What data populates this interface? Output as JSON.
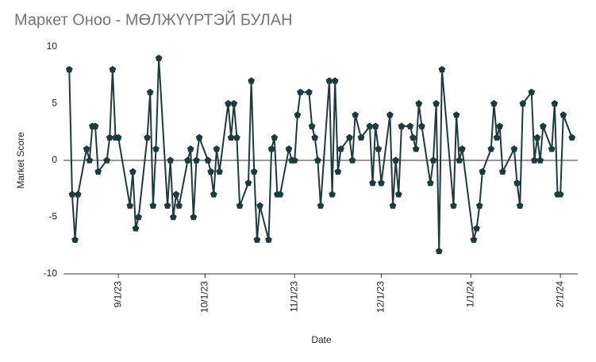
{
  "chart_data": {
    "type": "line",
    "title": "Маркет Оноо - МӨЛЖҮҮРТЭЙ БУЛАН",
    "xlabel": "Date",
    "ylabel": "Market Score",
    "x": [
      "2023-08-15",
      "2023-08-16",
      "2023-08-17",
      "2023-08-18",
      "2023-08-21",
      "2023-08-22",
      "2023-08-23",
      "2023-08-24",
      "2023-08-25",
      "2023-08-28",
      "2023-08-29",
      "2023-08-30",
      "2023-08-31",
      "2023-09-01",
      "2023-09-05",
      "2023-09-06",
      "2023-09-07",
      "2023-09-08",
      "2023-09-11",
      "2023-09-12",
      "2023-09-13",
      "2023-09-14",
      "2023-09-15",
      "2023-09-18",
      "2023-09-19",
      "2023-09-20",
      "2023-09-21",
      "2023-09-22",
      "2023-09-25",
      "2023-09-26",
      "2023-09-27",
      "2023-09-28",
      "2023-09-29",
      "2023-10-02",
      "2023-10-03",
      "2023-10-04",
      "2023-10-05",
      "2023-10-06",
      "2023-10-09",
      "2023-10-10",
      "2023-10-11",
      "2023-10-12",
      "2023-10-13",
      "2023-10-16",
      "2023-10-17",
      "2023-10-18",
      "2023-10-19",
      "2023-10-20",
      "2023-10-23",
      "2023-10-24",
      "2023-10-25",
      "2023-10-26",
      "2023-10-27",
      "2023-10-30",
      "2023-10-31",
      "2023-11-01",
      "2023-11-02",
      "2023-11-03",
      "2023-11-06",
      "2023-11-07",
      "2023-11-08",
      "2023-11-09",
      "2023-11-10",
      "2023-11-13",
      "2023-11-14",
      "2023-11-15",
      "2023-11-16",
      "2023-11-17",
      "2023-11-20",
      "2023-11-21",
      "2023-11-22",
      "2023-11-24",
      "2023-11-27",
      "2023-11-28",
      "2023-11-29",
      "2023-11-30",
      "2023-12-01",
      "2023-12-04",
      "2023-12-05",
      "2023-12-06",
      "2023-12-07",
      "2023-12-08",
      "2023-12-11",
      "2023-12-12",
      "2023-12-13",
      "2023-12-14",
      "2023-12-15",
      "2023-12-18",
      "2023-12-19",
      "2023-12-20",
      "2023-12-21",
      "2023-12-22",
      "2023-12-26",
      "2023-12-27",
      "2023-12-28",
      "2023-12-29",
      "2024-01-02",
      "2024-01-03",
      "2024-01-04",
      "2024-01-05",
      "2024-01-08",
      "2024-01-09",
      "2024-01-10",
      "2024-01-11",
      "2024-01-12",
      "2024-01-16",
      "2024-01-17",
      "2024-01-18",
      "2024-01-19",
      "2024-01-22",
      "2024-01-23",
      "2024-01-24",
      "2024-01-25",
      "2024-01-26",
      "2024-01-29",
      "2024-01-30",
      "2024-01-31",
      "2024-02-01",
      "2024-02-02",
      "2024-02-05"
    ],
    "series": [
      {
        "name": "Market Score",
        "color": "#1e3a3c",
        "values": [
          8,
          -3,
          -7,
          -3,
          1,
          0,
          3,
          3,
          -1,
          0,
          2,
          8,
          2,
          2,
          -4,
          -1,
          -6,
          -5,
          2,
          6,
          -4,
          1,
          9,
          -4,
          0,
          -5,
          -3,
          -4,
          0,
          1,
          -5,
          0,
          2,
          0,
          -1,
          -3,
          1,
          -1,
          5,
          2,
          5,
          2,
          -4,
          -2,
          7,
          -1,
          -7,
          -4,
          -7,
          1,
          2,
          -3,
          -3,
          1,
          0,
          0,
          4,
          6,
          6,
          3,
          2,
          0,
          -4,
          7,
          -3,
          7,
          -1,
          1,
          2,
          0,
          4,
          2,
          3,
          -2,
          3,
          1,
          -2,
          4,
          -4,
          0,
          -3,
          3,
          3,
          2,
          1,
          5,
          3,
          -2,
          0,
          5,
          -8,
          8,
          -4,
          4,
          0,
          1,
          -7,
          -6,
          -4,
          -1,
          1,
          5,
          2,
          3,
          -1,
          1,
          -2,
          -4,
          5,
          6,
          0,
          2,
          0,
          3,
          1,
          5,
          -3,
          -3,
          4,
          2
        ]
      }
    ],
    "xlim": [
      "2023-08-13",
      "2024-02-07"
    ],
    "xticks": [
      {
        "value": "2023-09-01",
        "label": "9/1/23"
      },
      {
        "value": "2023-10-01",
        "label": "10/1/23"
      },
      {
        "value": "2023-11-01",
        "label": "11/1/23"
      },
      {
        "value": "2023-12-01",
        "label": "12/1/23"
      },
      {
        "value": "2024-01-01",
        "label": "1/1/24"
      },
      {
        "value": "2024-02-01",
        "label": "2/1/24"
      }
    ],
    "ylim": [
      -10,
      10
    ],
    "yticks": [
      -10,
      -5,
      0,
      5,
      10
    ],
    "zero_line": true
  }
}
